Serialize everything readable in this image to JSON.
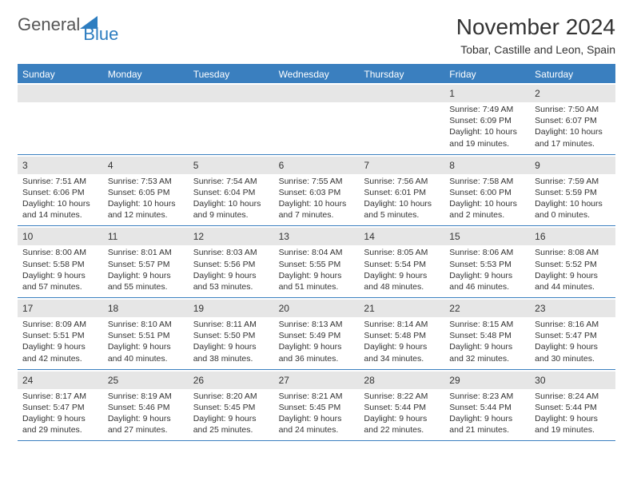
{
  "brand": {
    "part1": "General",
    "part2": "Blue",
    "triangle_color": "#2d7dc0"
  },
  "title": "November 2024",
  "location": "Tobar, Castille and Leon, Spain",
  "colors": {
    "header_bg": "#3a7fbf",
    "row_divider": "#3a7fbf",
    "daynum_bg": "#e6e6e6",
    "text": "#333333",
    "background": "#ffffff"
  },
  "layout": {
    "columns": 7,
    "rows": 5,
    "first_weekday_index": 5
  },
  "days_of_week": [
    "Sunday",
    "Monday",
    "Tuesday",
    "Wednesday",
    "Thursday",
    "Friday",
    "Saturday"
  ],
  "days": [
    {
      "num": 1,
      "sunrise": "7:49 AM",
      "sunset": "6:09 PM",
      "daylight": "10 hours and 19 minutes."
    },
    {
      "num": 2,
      "sunrise": "7:50 AM",
      "sunset": "6:07 PM",
      "daylight": "10 hours and 17 minutes."
    },
    {
      "num": 3,
      "sunrise": "7:51 AM",
      "sunset": "6:06 PM",
      "daylight": "10 hours and 14 minutes."
    },
    {
      "num": 4,
      "sunrise": "7:53 AM",
      "sunset": "6:05 PM",
      "daylight": "10 hours and 12 minutes."
    },
    {
      "num": 5,
      "sunrise": "7:54 AM",
      "sunset": "6:04 PM",
      "daylight": "10 hours and 9 minutes."
    },
    {
      "num": 6,
      "sunrise": "7:55 AM",
      "sunset": "6:03 PM",
      "daylight": "10 hours and 7 minutes."
    },
    {
      "num": 7,
      "sunrise": "7:56 AM",
      "sunset": "6:01 PM",
      "daylight": "10 hours and 5 minutes."
    },
    {
      "num": 8,
      "sunrise": "7:58 AM",
      "sunset": "6:00 PM",
      "daylight": "10 hours and 2 minutes."
    },
    {
      "num": 9,
      "sunrise": "7:59 AM",
      "sunset": "5:59 PM",
      "daylight": "10 hours and 0 minutes."
    },
    {
      "num": 10,
      "sunrise": "8:00 AM",
      "sunset": "5:58 PM",
      "daylight": "9 hours and 57 minutes."
    },
    {
      "num": 11,
      "sunrise": "8:01 AM",
      "sunset": "5:57 PM",
      "daylight": "9 hours and 55 minutes."
    },
    {
      "num": 12,
      "sunrise": "8:03 AM",
      "sunset": "5:56 PM",
      "daylight": "9 hours and 53 minutes."
    },
    {
      "num": 13,
      "sunrise": "8:04 AM",
      "sunset": "5:55 PM",
      "daylight": "9 hours and 51 minutes."
    },
    {
      "num": 14,
      "sunrise": "8:05 AM",
      "sunset": "5:54 PM",
      "daylight": "9 hours and 48 minutes."
    },
    {
      "num": 15,
      "sunrise": "8:06 AM",
      "sunset": "5:53 PM",
      "daylight": "9 hours and 46 minutes."
    },
    {
      "num": 16,
      "sunrise": "8:08 AM",
      "sunset": "5:52 PM",
      "daylight": "9 hours and 44 minutes."
    },
    {
      "num": 17,
      "sunrise": "8:09 AM",
      "sunset": "5:51 PM",
      "daylight": "9 hours and 42 minutes."
    },
    {
      "num": 18,
      "sunrise": "8:10 AM",
      "sunset": "5:51 PM",
      "daylight": "9 hours and 40 minutes."
    },
    {
      "num": 19,
      "sunrise": "8:11 AM",
      "sunset": "5:50 PM",
      "daylight": "9 hours and 38 minutes."
    },
    {
      "num": 20,
      "sunrise": "8:13 AM",
      "sunset": "5:49 PM",
      "daylight": "9 hours and 36 minutes."
    },
    {
      "num": 21,
      "sunrise": "8:14 AM",
      "sunset": "5:48 PM",
      "daylight": "9 hours and 34 minutes."
    },
    {
      "num": 22,
      "sunrise": "8:15 AM",
      "sunset": "5:48 PM",
      "daylight": "9 hours and 32 minutes."
    },
    {
      "num": 23,
      "sunrise": "8:16 AM",
      "sunset": "5:47 PM",
      "daylight": "9 hours and 30 minutes."
    },
    {
      "num": 24,
      "sunrise": "8:17 AM",
      "sunset": "5:47 PM",
      "daylight": "9 hours and 29 minutes."
    },
    {
      "num": 25,
      "sunrise": "8:19 AM",
      "sunset": "5:46 PM",
      "daylight": "9 hours and 27 minutes."
    },
    {
      "num": 26,
      "sunrise": "8:20 AM",
      "sunset": "5:45 PM",
      "daylight": "9 hours and 25 minutes."
    },
    {
      "num": 27,
      "sunrise": "8:21 AM",
      "sunset": "5:45 PM",
      "daylight": "9 hours and 24 minutes."
    },
    {
      "num": 28,
      "sunrise": "8:22 AM",
      "sunset": "5:44 PM",
      "daylight": "9 hours and 22 minutes."
    },
    {
      "num": 29,
      "sunrise": "8:23 AM",
      "sunset": "5:44 PM",
      "daylight": "9 hours and 21 minutes."
    },
    {
      "num": 30,
      "sunrise": "8:24 AM",
      "sunset": "5:44 PM",
      "daylight": "9 hours and 19 minutes."
    }
  ],
  "labels": {
    "sunrise": "Sunrise:",
    "sunset": "Sunset:",
    "daylight": "Daylight:"
  },
  "typography": {
    "title_fontsize": 28,
    "location_fontsize": 14,
    "dow_fontsize": 12,
    "daynum_fontsize": 12,
    "info_fontsize": 10.5,
    "font_family": "Arial"
  }
}
